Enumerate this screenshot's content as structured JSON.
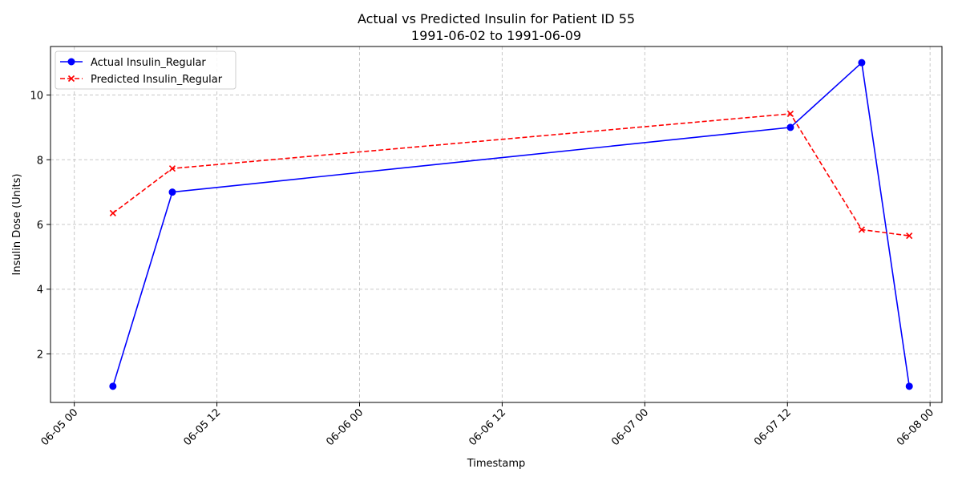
{
  "chart_data": {
    "type": "line",
    "title": "Actual vs Predicted Insulin for Patient ID 55",
    "subtitle": "1991-06-02 to 1991-06-09",
    "xlabel": "Timestamp",
    "ylabel": "Insulin Dose (Units)",
    "x_ticks": [
      {
        "value": "1991-06-05 00:00",
        "label": "06-05 00"
      },
      {
        "value": "1991-06-05 12:00",
        "label": "06-05 12"
      },
      {
        "value": "1991-06-06 00:00",
        "label": "06-06 00"
      },
      {
        "value": "1991-06-06 12:00",
        "label": "06-06 12"
      },
      {
        "value": "1991-06-07 00:00",
        "label": "06-07 00"
      },
      {
        "value": "1991-06-07 12:00",
        "label": "06-07 12"
      },
      {
        "value": "1991-06-08 00:00",
        "label": "06-08 00"
      }
    ],
    "y_ticks": [
      2,
      4,
      6,
      8,
      10
    ],
    "xlim": [
      "1991-06-04 22:00",
      "1991-06-08 01:00"
    ],
    "ylim": [
      0.5,
      11.5
    ],
    "grid": true,
    "legend_position": "top-left",
    "series": [
      {
        "name": "Actual Insulin_Regular",
        "color": "#0000ff",
        "line_style": "solid",
        "marker": "circle",
        "points": [
          {
            "x": "1991-06-05 03:15",
            "y": 1
          },
          {
            "x": "1991-06-05 08:15",
            "y": 7
          },
          {
            "x": "1991-06-07 12:15",
            "y": 9
          },
          {
            "x": "1991-06-07 18:15",
            "y": 11
          },
          {
            "x": "1991-06-07 22:15",
            "y": 1
          }
        ]
      },
      {
        "name": "Predicted Insulin_Regular",
        "color": "#ff0000",
        "line_style": "dashed",
        "marker": "x",
        "points": [
          {
            "x": "1991-06-05 03:15",
            "y": 6.35
          },
          {
            "x": "1991-06-05 08:15",
            "y": 7.73
          },
          {
            "x": "1991-06-07 12:15",
            "y": 9.42
          },
          {
            "x": "1991-06-07 18:15",
            "y": 5.84
          },
          {
            "x": "1991-06-07 22:15",
            "y": 5.65
          }
        ]
      }
    ]
  }
}
